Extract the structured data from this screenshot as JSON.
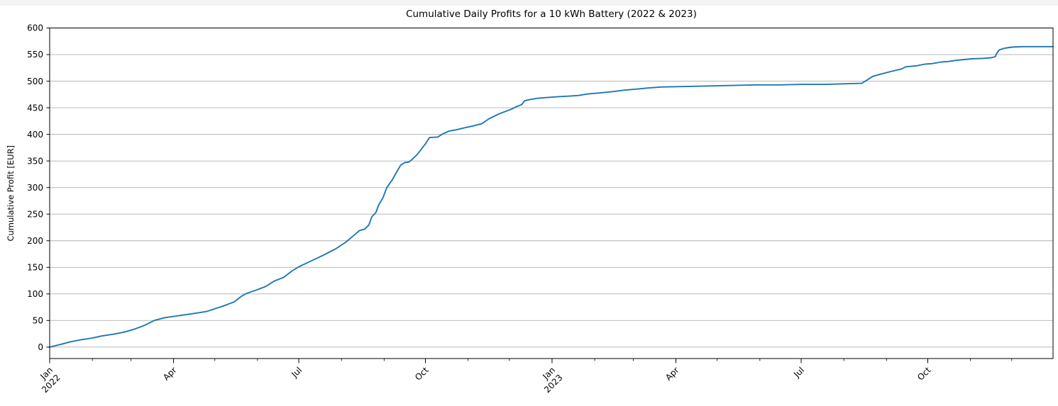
{
  "chart_data": {
    "type": "line",
    "title": "Cumulative Daily Profits for a 10 kWh Battery (2022 & 2023)",
    "xlabel": "",
    "ylabel": "Cumulative Profit [EUR]",
    "legend": "none",
    "grid": "horizontal",
    "x_range": [
      "2022-01-01",
      "2023-12-31"
    ],
    "ylim": [
      -21.5,
      600
    ],
    "yticks": [
      0,
      50,
      100,
      150,
      200,
      250,
      300,
      350,
      400,
      450,
      500,
      550,
      600
    ],
    "x_major_ticks": [
      {
        "date": "2022-01-01",
        "label": [
          "Jan",
          "2022"
        ]
      },
      {
        "date": "2022-04-01",
        "label": [
          "Apr"
        ]
      },
      {
        "date": "2022-07-01",
        "label": [
          "Jul"
        ]
      },
      {
        "date": "2022-10-01",
        "label": [
          "Oct"
        ]
      },
      {
        "date": "2023-01-01",
        "label": [
          "Jan",
          "2023"
        ]
      },
      {
        "date": "2023-04-01",
        "label": [
          "Apr"
        ]
      },
      {
        "date": "2023-07-01",
        "label": [
          "Jul"
        ]
      },
      {
        "date": "2023-10-01",
        "label": [
          "Oct"
        ]
      }
    ],
    "x_minor_ticks": "monthly",
    "colors": {
      "line": "#1f77b4",
      "grid": "#b0b0b0",
      "spine": "#000000",
      "text": "#000000",
      "background": "#ffffff",
      "top_strip": "#f4f4f4"
    },
    "series": [
      {
        "name": "cumulative_profit_eur",
        "points": [
          [
            "2022-01-01",
            0
          ],
          [
            "2022-01-09",
            5
          ],
          [
            "2022-01-16",
            10
          ],
          [
            "2022-01-24",
            14
          ],
          [
            "2022-02-01",
            17
          ],
          [
            "2022-02-08",
            21
          ],
          [
            "2022-02-16",
            24
          ],
          [
            "2022-02-24",
            28
          ],
          [
            "2022-03-04",
            34
          ],
          [
            "2022-03-11",
            41
          ],
          [
            "2022-03-18",
            50
          ],
          [
            "2022-03-25",
            55
          ],
          [
            "2022-04-02",
            58
          ],
          [
            "2022-04-10",
            61
          ],
          [
            "2022-04-18",
            64
          ],
          [
            "2022-04-25",
            67
          ],
          [
            "2022-05-02",
            73
          ],
          [
            "2022-05-08",
            78
          ],
          [
            "2022-05-15",
            85
          ],
          [
            "2022-05-20",
            95
          ],
          [
            "2022-05-24",
            101
          ],
          [
            "2022-05-31",
            107
          ],
          [
            "2022-06-07",
            114
          ],
          [
            "2022-06-13",
            124
          ],
          [
            "2022-06-20",
            131
          ],
          [
            "2022-06-26",
            143
          ],
          [
            "2022-07-01",
            151
          ],
          [
            "2022-07-10",
            162
          ],
          [
            "2022-07-19",
            173
          ],
          [
            "2022-07-28",
            185
          ],
          [
            "2022-08-04",
            197
          ],
          [
            "2022-08-10",
            210
          ],
          [
            "2022-08-14",
            219
          ],
          [
            "2022-08-18",
            222
          ],
          [
            "2022-08-21",
            230
          ],
          [
            "2022-08-23",
            245
          ],
          [
            "2022-08-26",
            253
          ],
          [
            "2022-08-28",
            267
          ],
          [
            "2022-08-31",
            280
          ],
          [
            "2022-09-03",
            300
          ],
          [
            "2022-09-07",
            315
          ],
          [
            "2022-09-11",
            333
          ],
          [
            "2022-09-13",
            342
          ],
          [
            "2022-09-16",
            347
          ],
          [
            "2022-09-19",
            348
          ],
          [
            "2022-09-21",
            352
          ],
          [
            "2022-09-25",
            362
          ],
          [
            "2022-09-28",
            372
          ],
          [
            "2022-10-01",
            382
          ],
          [
            "2022-10-04",
            394
          ],
          [
            "2022-10-10",
            395
          ],
          [
            "2022-10-13",
            400
          ],
          [
            "2022-10-18",
            406
          ],
          [
            "2022-10-24",
            409
          ],
          [
            "2022-10-29",
            412
          ],
          [
            "2022-11-05",
            416
          ],
          [
            "2022-11-11",
            420
          ],
          [
            "2022-11-16",
            429
          ],
          [
            "2022-11-23",
            438
          ],
          [
            "2022-11-29",
            444
          ],
          [
            "2022-12-03",
            448
          ],
          [
            "2022-12-06",
            452
          ],
          [
            "2022-12-10",
            456
          ],
          [
            "2022-12-12",
            463
          ],
          [
            "2022-12-15",
            465
          ],
          [
            "2022-12-22",
            468
          ],
          [
            "2023-01-01",
            470
          ],
          [
            "2023-01-07",
            471
          ],
          [
            "2023-01-14",
            472
          ],
          [
            "2023-01-20",
            473
          ],
          [
            "2023-01-27",
            476
          ],
          [
            "2023-02-05",
            478
          ],
          [
            "2023-02-13",
            480
          ],
          [
            "2023-02-22",
            483
          ],
          [
            "2023-03-03",
            485
          ],
          [
            "2023-03-11",
            487
          ],
          [
            "2023-03-21",
            489
          ],
          [
            "2023-04-08",
            490
          ],
          [
            "2023-04-25",
            491
          ],
          [
            "2023-05-12",
            492
          ],
          [
            "2023-05-29",
            493
          ],
          [
            "2023-06-15",
            493
          ],
          [
            "2023-07-02",
            494
          ],
          [
            "2023-07-19",
            494
          ],
          [
            "2023-07-31",
            495
          ],
          [
            "2023-08-14",
            496
          ],
          [
            "2023-08-19",
            504
          ],
          [
            "2023-08-22",
            509
          ],
          [
            "2023-08-26",
            512
          ],
          [
            "2023-09-04",
            518
          ],
          [
            "2023-09-12",
            523
          ],
          [
            "2023-09-15",
            527
          ],
          [
            "2023-09-23",
            529
          ],
          [
            "2023-09-29",
            532
          ],
          [
            "2023-10-04",
            533
          ],
          [
            "2023-10-11",
            536
          ],
          [
            "2023-10-16",
            537
          ],
          [
            "2023-10-21",
            539
          ],
          [
            "2023-10-25",
            540
          ],
          [
            "2023-11-02",
            542
          ],
          [
            "2023-11-11",
            543
          ],
          [
            "2023-11-16",
            544
          ],
          [
            "2023-11-19",
            546
          ],
          [
            "2023-11-20",
            552
          ],
          [
            "2023-11-22",
            559
          ],
          [
            "2023-11-26",
            562
          ],
          [
            "2023-12-01",
            564
          ],
          [
            "2023-12-09",
            565
          ],
          [
            "2023-12-16",
            565
          ],
          [
            "2023-12-31",
            565
          ]
        ]
      }
    ]
  }
}
